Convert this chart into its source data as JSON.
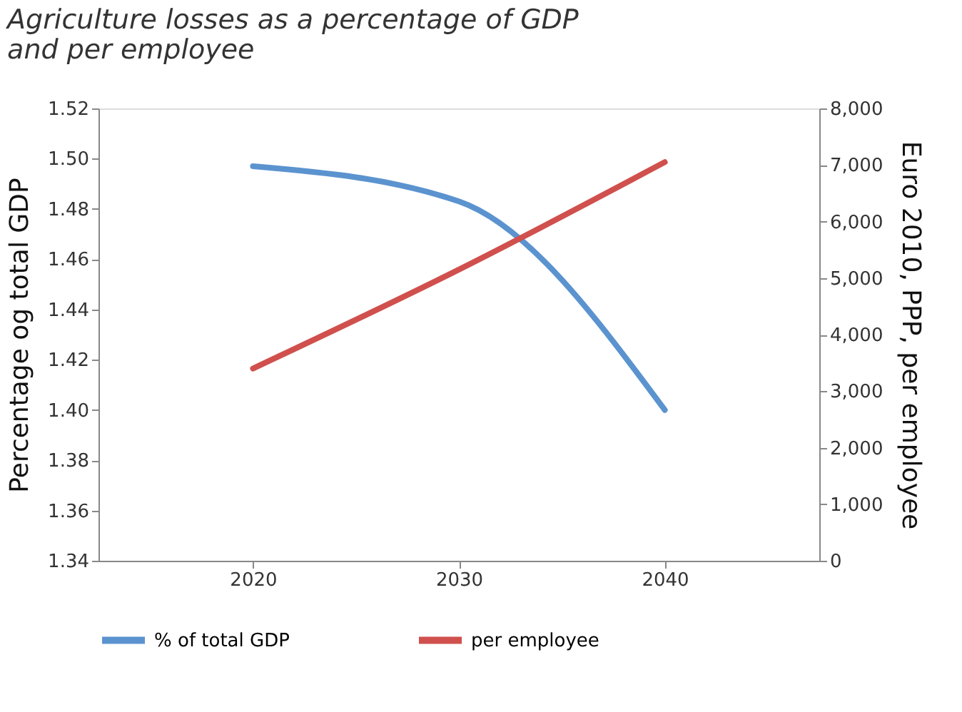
{
  "chart_data": {
    "type": "line",
    "title": [
      "Agriculture losses as a percentage of GDP",
      "and per employee"
    ],
    "categories": [
      "2020",
      "2030",
      "2040"
    ],
    "series": [
      {
        "name": "% of total GDP",
        "color": "#5b93cf",
        "values": [
          1.497,
          1.483,
          1.4
        ]
      },
      {
        "name": "per employee",
        "color": "#d0504d",
        "values": [
          3400,
          5150,
          7050
        ],
        "axis": "y2"
      }
    ],
    "ylabel": "Percentage og total GDP",
    "y2label": "Euro 2010, PPP, per employee",
    "ylim": [
      1.34,
      1.52
    ],
    "yticks": [
      {
        "value": 1.34,
        "label": "1.34"
      },
      {
        "value": 1.36,
        "label": "1.36"
      },
      {
        "value": 1.38,
        "label": "1.38"
      },
      {
        "value": 1.4,
        "label": "1.40"
      },
      {
        "value": 1.42,
        "label": "1.42"
      },
      {
        "value": 1.44,
        "label": "1.44"
      },
      {
        "value": 1.46,
        "label": "1.46"
      },
      {
        "value": 1.48,
        "label": "1.48"
      },
      {
        "value": 1.5,
        "label": "1.50"
      },
      {
        "value": 1.52,
        "label": "1.52"
      }
    ],
    "y2lim": [
      0,
      8000
    ],
    "y2ticks": [
      {
        "value": 0,
        "label": "0"
      },
      {
        "value": 1000,
        "label": "1,000"
      },
      {
        "value": 2000,
        "label": "2,000"
      },
      {
        "value": 3000,
        "label": "3,000"
      },
      {
        "value": 4000,
        "label": "4,000"
      },
      {
        "value": 5000,
        "label": "5,000"
      },
      {
        "value": 6000,
        "label": "6,000"
      },
      {
        "value": 7000,
        "label": "7,000"
      },
      {
        "value": 8000,
        "label": "8,000"
      }
    ],
    "grid": false,
    "legend": "bottom",
    "marker": "none",
    "line_style": "solid"
  }
}
